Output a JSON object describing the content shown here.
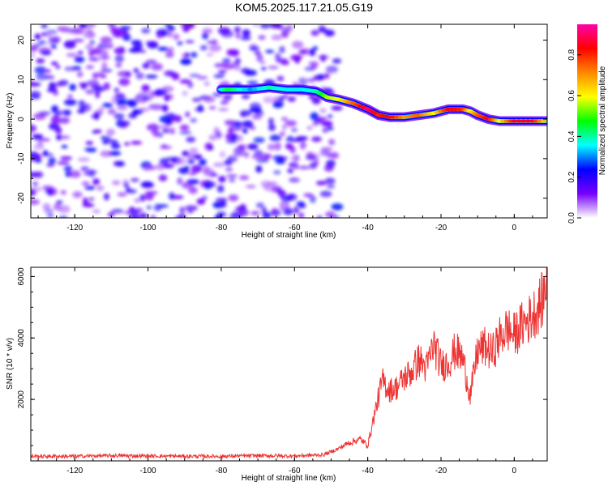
{
  "title": "KOM5.2025.117.21.05.G19",
  "chart_data": [
    {
      "type": "heatmap",
      "xlabel": "Height of straight line (km)",
      "ylabel": "Frequency (Hz)",
      "xlim": [
        -132,
        9
      ],
      "ylim": [
        -25,
        24
      ],
      "x_ticks": [
        -120,
        -100,
        -80,
        -60,
        -40,
        -20,
        0
      ],
      "y_ticks": [
        -20,
        -10,
        0,
        10,
        20
      ],
      "colorbar": {
        "label": "Normalized spectral amplitude",
        "range": [
          0,
          0.95
        ],
        "ticks": [
          0.0,
          0.2,
          0.4,
          0.6,
          0.8
        ],
        "colors": [
          "#ffffff",
          "#7700ff",
          "#0000ff",
          "#00ffff",
          "#00ff00",
          "#ffff00",
          "#ff8800",
          "#ff0000",
          "#ff00aa"
        ]
      },
      "ridge": {
        "x": [
          -80,
          -78,
          -72,
          -67,
          -62,
          -58,
          -54,
          -51,
          -48,
          -44,
          -40,
          -37,
          -34,
          -30,
          -26,
          -22,
          -18,
          -14,
          -12,
          -10,
          -7,
          -4,
          0,
          5,
          9
        ],
        "y": [
          7.5,
          7.5,
          7.5,
          8,
          7.5,
          7.5,
          7,
          5.5,
          5,
          4,
          2.5,
          1,
          0.5,
          0.5,
          1,
          1.5,
          2.5,
          2.5,
          2,
          1,
          0,
          -0.5,
          -0.5,
          -0.5,
          -0.5
        ],
        "amplitude": [
          0.35,
          0.45,
          0.3,
          0.4,
          0.35,
          0.35,
          0.4,
          0.55,
          0.6,
          0.75,
          0.9,
          0.8,
          0.85,
          0.7,
          0.75,
          0.6,
          0.85,
          0.8,
          0.6,
          0.75,
          0.85,
          0.6,
          0.85,
          0.85,
          0.6
        ]
      },
      "noise_region_x": [
        -132,
        -52
      ],
      "noise_amplitude_range": [
        0.05,
        0.25
      ]
    },
    {
      "type": "line",
      "xlabel": "Height of straight line (km)",
      "ylabel": "SNR (10 * v/v)",
      "xlim": [
        -132,
        9
      ],
      "ylim": [
        0,
        6300
      ],
      "x_ticks": [
        -120,
        -100,
        -80,
        -60,
        -40,
        -20,
        0
      ],
      "y_ticks": [
        2000,
        4000,
        6000
      ],
      "series": [
        {
          "color": "#ee3333",
          "x": [
            -132,
            -120,
            -110,
            -100,
            -90,
            -80,
            -70,
            -60,
            -52,
            -48,
            -45,
            -42,
            -40,
            -38,
            -36,
            -34,
            -32,
            -30,
            -28,
            -26,
            -24,
            -22,
            -20,
            -18,
            -16,
            -14,
            -12,
            -10,
            -8,
            -6,
            -4,
            -2,
            0,
            2,
            4,
            6,
            8,
            9
          ],
          "y": [
            150,
            150,
            170,
            160,
            150,
            150,
            170,
            160,
            200,
            400,
            600,
            700,
            500,
            1600,
            2600,
            2300,
            2400,
            2700,
            2900,
            3300,
            3000,
            3800,
            3100,
            3200,
            3600,
            3300,
            2100,
            3600,
            3700,
            3500,
            4000,
            4300,
            4100,
            4400,
            4600,
            4900,
            5300,
            6200
          ]
        }
      ]
    }
  ]
}
